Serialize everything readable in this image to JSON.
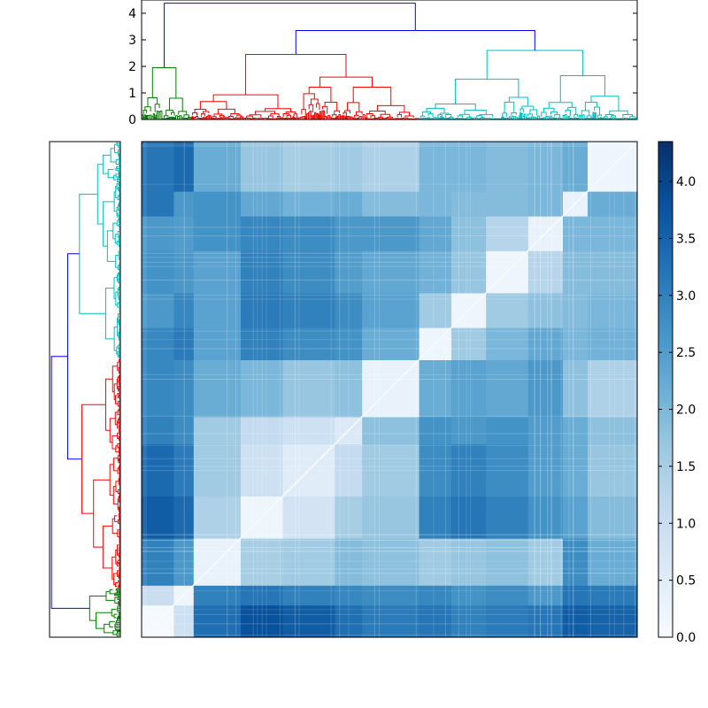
{
  "chart_data": {
    "type": "heatmap",
    "title": "",
    "xlabel": "",
    "ylabel": "",
    "grid": false,
    "cluster_colors": {
      "root": "#0000ff",
      "green": "#008000",
      "red": "#ff0000",
      "cyan": "#00bfbf"
    },
    "top_dendrogram": {
      "ylim": [
        0,
        4.5
      ],
      "yticks": [
        0,
        1,
        2,
        3,
        4
      ],
      "leaf_groups": [
        {
          "cluster": "green",
          "start": 0.0,
          "end": 0.1
        },
        {
          "cluster": "red",
          "start": 0.1,
          "end": 0.56
        },
        {
          "cluster": "cyan",
          "start": 0.56,
          "end": 1.0
        }
      ],
      "root_links": [
        {
          "left": 0.04,
          "right": 0.49,
          "height": 4.38
        },
        {
          "left": 0.23,
          "right": 0.75,
          "height": 3.35
        }
      ],
      "cluster_tops": [
        {
          "cluster": "green",
          "height": 1.95
        },
        {
          "cluster": "red",
          "height": 2.45
        },
        {
          "cluster": "cyan",
          "height": 2.6
        }
      ]
    },
    "left_dendrogram": {
      "leaf_groups": [
        {
          "cluster": "green",
          "start": 0.0,
          "end": 0.1
        },
        {
          "cluster": "red",
          "start": 0.1,
          "end": 0.56
        },
        {
          "cluster": "cyan",
          "start": 0.56,
          "end": 1.0
        }
      ]
    },
    "heatmap": {
      "colormap": "Blues",
      "vmin": 0,
      "vmax": 4.35,
      "blocks": [
        0.065,
        0.105,
        0.2,
        0.285,
        0.39,
        0.445,
        0.56,
        0.625,
        0.695,
        0.78,
        0.85,
        0.9,
        1.0
      ],
      "row_values": [
        [
          0.05,
          0.9,
          3.3,
          3.8,
          3.6,
          3.3,
          3.1,
          3.2,
          3.0,
          3.1,
          3.2,
          3.6,
          3.5
        ],
        [
          1.0,
          0.2,
          3.0,
          3.2,
          3.0,
          2.9,
          2.8,
          2.9,
          2.7,
          2.8,
          2.6,
          3.2,
          3.1
        ],
        [
          3.0,
          2.6,
          0.3,
          1.5,
          1.6,
          1.9,
          1.8,
          1.6,
          1.7,
          1.8,
          1.6,
          2.8,
          2.2
        ],
        [
          3.6,
          3.4,
          1.4,
          0.2,
          0.8,
          1.5,
          1.7,
          3.0,
          3.2,
          3.0,
          2.7,
          2.4,
          1.9
        ],
        [
          3.4,
          3.1,
          1.6,
          0.9,
          0.5,
          1.1,
          1.6,
          2.8,
          3.0,
          2.8,
          2.5,
          2.2,
          1.7
        ],
        [
          3.0,
          2.8,
          1.6,
          1.1,
          0.9,
          0.6,
          1.8,
          2.7,
          2.6,
          2.7,
          2.5,
          2.2,
          1.8
        ],
        [
          2.9,
          2.8,
          2.2,
          2.0,
          1.7,
          1.8,
          0.3,
          2.2,
          2.4,
          2.3,
          2.6,
          1.8,
          1.4
        ],
        [
          2.9,
          3.1,
          2.4,
          3.0,
          2.8,
          2.7,
          2.2,
          0.2,
          1.6,
          2.0,
          2.3,
          2.0,
          2.1
        ],
        [
          2.6,
          2.9,
          2.4,
          3.1,
          3.0,
          2.8,
          2.4,
          1.6,
          0.2,
          1.6,
          1.8,
          1.9,
          2.0
        ],
        [
          2.7,
          2.6,
          2.4,
          3.0,
          2.8,
          2.5,
          2.3,
          2.1,
          1.7,
          0.2,
          1.3,
          1.9,
          1.9
        ],
        [
          2.6,
          2.5,
          2.7,
          2.9,
          2.8,
          2.6,
          2.6,
          2.3,
          1.8,
          1.3,
          0.3,
          2.0,
          2.0
        ],
        [
          3.2,
          2.6,
          2.7,
          2.3,
          2.1,
          2.2,
          1.9,
          2.0,
          1.9,
          1.9,
          2.0,
          0.3,
          2.2
        ],
        [
          3.2,
          3.4,
          2.2,
          1.7,
          1.5,
          1.6,
          1.4,
          2.0,
          2.0,
          1.9,
          2.0,
          2.2,
          0.2
        ]
      ]
    },
    "colorbar": {
      "vmin": 0,
      "vmax": 4.35,
      "ticks": [
        "0.0",
        "0.5",
        "1.0",
        "1.5",
        "2.0",
        "2.5",
        "3.0",
        "3.5",
        "4.0"
      ]
    }
  }
}
